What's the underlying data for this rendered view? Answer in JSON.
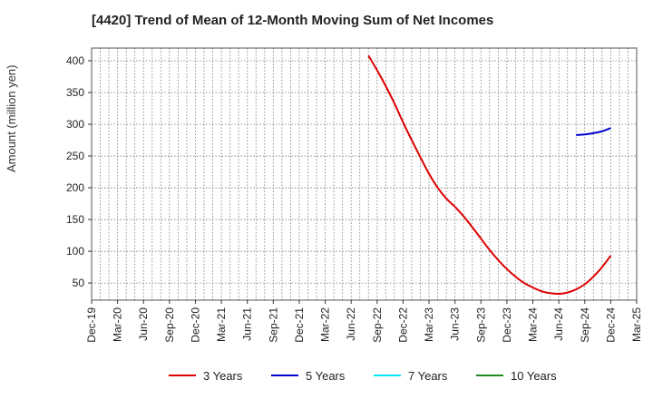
{
  "chart_data": {
    "type": "line",
    "title": "[4420]  Trend of Mean of 12-Month Moving Sum of Net Incomes",
    "ylabel": "Amount (million yen)",
    "xlabel": "",
    "ylim": [
      23,
      420
    ],
    "y_ticks": [
      50,
      100,
      150,
      200,
      250,
      300,
      350,
      400
    ],
    "x_ticks": [
      "Dec-19",
      "Mar-20",
      "Jun-20",
      "Sep-20",
      "Dec-20",
      "Mar-21",
      "Jun-21",
      "Sep-21",
      "Dec-21",
      "Mar-22",
      "Jun-22",
      "Sep-22",
      "Dec-22",
      "Mar-23",
      "Jun-23",
      "Sep-23",
      "Dec-23",
      "Mar-24",
      "Jun-24",
      "Sep-24",
      "Dec-24",
      "Mar-25"
    ],
    "grid": true,
    "legend_position": "bottom",
    "series": [
      {
        "name": "3 Years",
        "color": "#dd0000",
        "points": [
          [
            "Aug-22",
            408
          ],
          [
            "Sep-22",
            385
          ],
          [
            "Oct-22",
            360
          ],
          [
            "Nov-22",
            333
          ],
          [
            "Dec-22",
            303
          ],
          [
            "Jan-23",
            275
          ],
          [
            "Feb-23",
            248
          ],
          [
            "Mar-23",
            222
          ],
          [
            "Apr-23",
            200
          ],
          [
            "May-23",
            183
          ],
          [
            "Jun-23",
            170
          ],
          [
            "Jul-23",
            155
          ],
          [
            "Aug-23",
            138
          ],
          [
            "Sep-23",
            120
          ],
          [
            "Oct-23",
            102
          ],
          [
            "Nov-23",
            86
          ],
          [
            "Dec-23",
            72
          ],
          [
            "Jan-24",
            60
          ],
          [
            "Feb-24",
            50
          ],
          [
            "Mar-24",
            43
          ],
          [
            "Apr-24",
            37
          ],
          [
            "May-24",
            34
          ],
          [
            "Jun-24",
            33
          ],
          [
            "Jul-24",
            35
          ],
          [
            "Aug-24",
            40
          ],
          [
            "Sep-24",
            48
          ],
          [
            "Oct-24",
            60
          ],
          [
            "Nov-24",
            75
          ],
          [
            "Dec-24",
            93
          ]
        ]
      },
      {
        "name": "5 Years",
        "color": "#0000cc",
        "points": [
          [
            "Aug-24",
            283
          ],
          [
            "Sep-24",
            284
          ],
          [
            "Oct-24",
            286
          ],
          [
            "Nov-24",
            289
          ],
          [
            "Dec-24",
            294
          ]
        ]
      },
      {
        "name": "7 Years",
        "color": "#00e5ee",
        "points": []
      },
      {
        "name": "10 Years",
        "color": "#228b22",
        "points": []
      }
    ]
  }
}
